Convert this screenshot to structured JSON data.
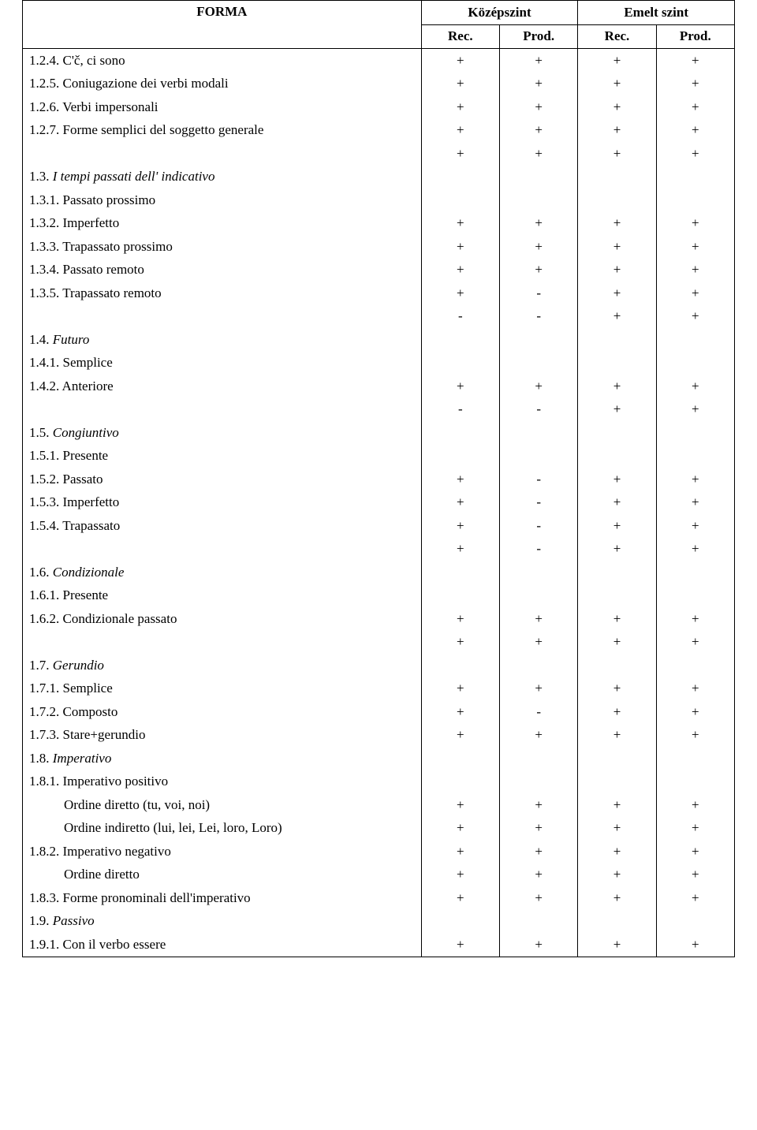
{
  "table": {
    "header": {
      "forma": "FORMA",
      "level1": "Középszint",
      "level2": "Emelt szint",
      "sub_rec": "Rec.",
      "sub_prod": "Prod."
    },
    "col_widths": {
      "forma_pct": 56,
      "mark_pct": 11
    },
    "rows": [
      {
        "label": "1.2.4. C'č, ci sono",
        "italic": false,
        "indent": false,
        "marks": [
          "+",
          "+",
          "+",
          "+"
        ]
      },
      {
        "label": "1.2.5. Coniugazione dei verbi modali",
        "italic": false,
        "indent": false,
        "marks": [
          "+",
          "+",
          "+",
          "+"
        ]
      },
      {
        "label": "1.2.6. Verbi impersonali",
        "italic": false,
        "indent": false,
        "marks": [
          "+",
          "+",
          "+",
          "+"
        ]
      },
      {
        "label": "1.2.7. Forme semplici del soggetto generale",
        "italic": false,
        "indent": false,
        "marks": [
          "+",
          "+",
          "+",
          "+"
        ]
      },
      {
        "label": "",
        "italic": false,
        "indent": false,
        "marks": [
          "+",
          "+",
          "+",
          "+"
        ]
      },
      {
        "label": "1.3. I tempi passati dell' indicativo",
        "italic": true,
        "indent": false,
        "marks": [
          "",
          "",
          "",
          ""
        ]
      },
      {
        "label": "1.3.1. Passato prossimo",
        "italic": false,
        "indent": false,
        "marks": [
          "",
          "",
          "",
          ""
        ]
      },
      {
        "label": "1.3.2. Imperfetto",
        "italic": false,
        "indent": false,
        "marks": [
          "+",
          "+",
          "+",
          "+"
        ]
      },
      {
        "label": "1.3.3. Trapassato prossimo",
        "italic": false,
        "indent": false,
        "marks": [
          "+",
          "+",
          "+",
          "+"
        ]
      },
      {
        "label": "1.3.4. Passato remoto",
        "italic": false,
        "indent": false,
        "marks": [
          "+",
          "+",
          "+",
          "+"
        ]
      },
      {
        "label": "1.3.5. Trapassato remoto",
        "italic": false,
        "indent": false,
        "marks": [
          "+",
          "-",
          "+",
          "+"
        ]
      },
      {
        "label": "",
        "italic": false,
        "indent": false,
        "marks": [
          "-",
          "-",
          "+",
          "+"
        ]
      },
      {
        "label": "1.4. Futuro",
        "italic": true,
        "indent": false,
        "marks": [
          "",
          "",
          "",
          ""
        ]
      },
      {
        "label": "1.4.1. Semplice",
        "italic": false,
        "indent": false,
        "marks": [
          "",
          "",
          "",
          ""
        ]
      },
      {
        "label": "1.4.2. Anteriore",
        "italic": false,
        "indent": false,
        "marks": [
          "+",
          "+",
          "+",
          "+"
        ]
      },
      {
        "label": "",
        "italic": false,
        "indent": false,
        "marks": [
          "-",
          "-",
          "+",
          "+"
        ]
      },
      {
        "label": "1.5. Congiuntivo",
        "italic": true,
        "indent": false,
        "marks": [
          "",
          "",
          "",
          ""
        ]
      },
      {
        "label": "1.5.1. Presente",
        "italic": false,
        "indent": false,
        "marks": [
          "",
          "",
          "",
          ""
        ]
      },
      {
        "label": "1.5.2. Passato",
        "italic": false,
        "indent": false,
        "marks": [
          "+",
          "-",
          "+",
          "+"
        ]
      },
      {
        "label": "1.5.3. Imperfetto",
        "italic": false,
        "indent": false,
        "marks": [
          "+",
          "-",
          "+",
          "+"
        ]
      },
      {
        "label": "1.5.4. Trapassato",
        "italic": false,
        "indent": false,
        "marks": [
          "+",
          "-",
          "+",
          "+"
        ]
      },
      {
        "label": "",
        "italic": false,
        "indent": false,
        "marks": [
          "+",
          "-",
          "+",
          "+"
        ]
      },
      {
        "label": "1.6. Condizionale",
        "italic": true,
        "indent": false,
        "marks": [
          "",
          "",
          "",
          ""
        ]
      },
      {
        "label": "1.6.1. Presente",
        "italic": false,
        "indent": false,
        "marks": [
          "",
          "",
          "",
          ""
        ]
      },
      {
        "label": "1.6.2. Condizionale passato",
        "italic": false,
        "indent": false,
        "marks": [
          "+",
          "+",
          "+",
          "+"
        ]
      },
      {
        "label": "",
        "italic": false,
        "indent": false,
        "marks": [
          "+",
          "+",
          "+",
          "+"
        ]
      },
      {
        "label": "1.7. Gerundio",
        "italic": true,
        "indent": false,
        "marks": [
          "",
          "",
          "",
          ""
        ]
      },
      {
        "label": "1.7.1. Semplice",
        "italic": false,
        "indent": false,
        "marks": [
          "+",
          "+",
          "+",
          "+"
        ]
      },
      {
        "label": "1.7.2. Composto",
        "italic": false,
        "indent": false,
        "marks": [
          "+",
          "-",
          "+",
          "+"
        ]
      },
      {
        "label": "1.7.3. Stare+gerundio",
        "italic": false,
        "indent": false,
        "marks": [
          "+",
          "+",
          "+",
          "+"
        ]
      },
      {
        "label": "1.8. Imperativo",
        "italic": true,
        "indent": false,
        "marks": [
          "",
          "",
          "",
          ""
        ]
      },
      {
        "label": "1.8.1. Imperativo positivo",
        "italic": false,
        "indent": false,
        "marks": [
          "",
          "",
          "",
          ""
        ]
      },
      {
        "label": "Ordine diretto (tu, voi, noi)",
        "italic": false,
        "indent": true,
        "marks": [
          "+",
          "+",
          "+",
          "+"
        ]
      },
      {
        "label": "Ordine indiretto (lui, lei, Lei, loro, Loro)",
        "italic": false,
        "indent": true,
        "marks": [
          "+",
          "+",
          "+",
          "+"
        ]
      },
      {
        "label": "1.8.2. Imperativo negativo",
        "italic": false,
        "indent": false,
        "marks": [
          "+",
          "+",
          "+",
          "+"
        ]
      },
      {
        "label": "Ordine diretto",
        "italic": false,
        "indent": true,
        "marks": [
          "+",
          "+",
          "+",
          "+"
        ]
      },
      {
        "label": "1.8.3. Forme pronominali dell'imperativo",
        "italic": false,
        "indent": false,
        "marks": [
          "+",
          "+",
          "+",
          "+"
        ]
      },
      {
        "label": "1.9. Passivo",
        "italic": true,
        "indent": false,
        "marks": [
          "",
          "",
          "",
          ""
        ]
      },
      {
        "label": "1.9.1. Con il verbo essere",
        "italic": false,
        "indent": false,
        "marks": [
          "+",
          "+",
          "+",
          "+"
        ]
      }
    ]
  }
}
